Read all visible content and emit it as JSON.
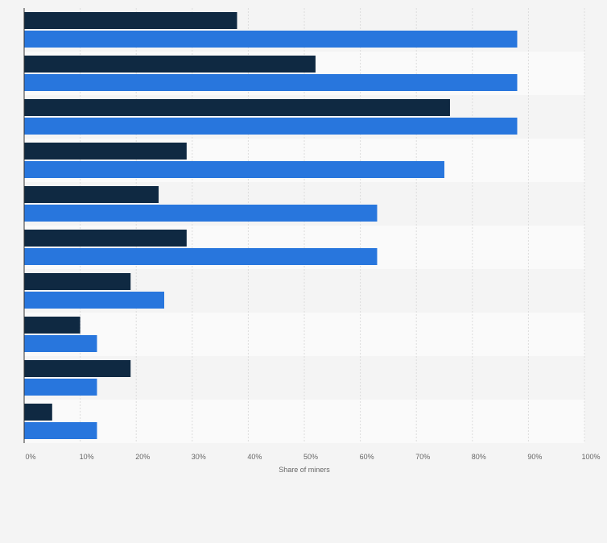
{
  "chart_data": {
    "type": "bar",
    "orientation": "horizontal",
    "categories": [
      "",
      "",
      "",
      "",
      "",
      "",
      "",
      "",
      "",
      ""
    ],
    "series": [
      {
        "color": "#0f2942",
        "values": [
          38,
          52,
          76,
          29,
          24,
          29,
          19,
          10,
          19,
          5
        ]
      },
      {
        "color": "#2876dd",
        "values": [
          88,
          88,
          88,
          75,
          63,
          63,
          25,
          13,
          13,
          13
        ]
      }
    ],
    "title": "",
    "xlabel": "Share of miners",
    "ylabel": "",
    "xlim": [
      0,
      100
    ],
    "xticks": [
      "0%",
      "10%",
      "20%",
      "30%",
      "40%",
      "50%",
      "60%",
      "70%",
      "80%",
      "90%",
      "100%"
    ],
    "grid": true,
    "legend": "none"
  }
}
